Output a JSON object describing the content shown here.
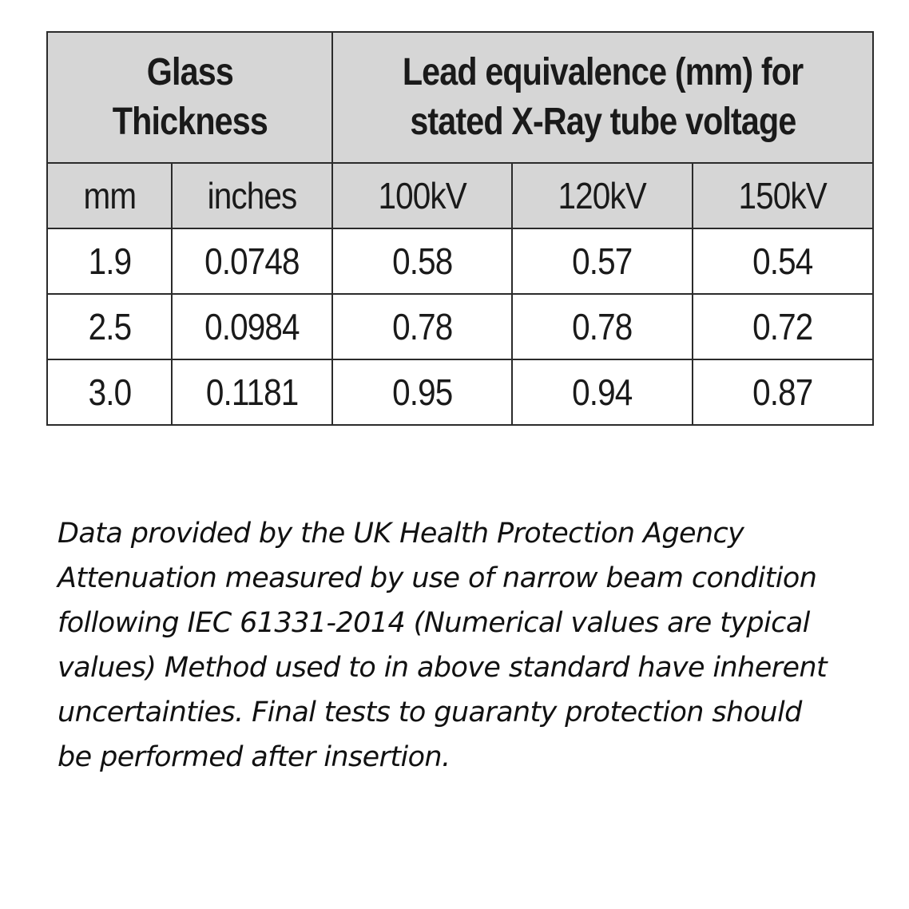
{
  "table": {
    "group_headers": {
      "glass_line1": "Glass",
      "glass_line2": "Thickness",
      "lead_line1": "Lead equivalence (mm) for",
      "lead_line2": "stated X-Ray tube voltage"
    },
    "columns": [
      "mm",
      "inches",
      "100kV",
      "120kV",
      "150kV"
    ],
    "rows": [
      [
        "1.9",
        "0.0748",
        "0.58",
        "0.57",
        "0.54"
      ],
      [
        "2.5",
        "0.0984",
        "0.78",
        "0.78",
        "0.72"
      ],
      [
        "3.0",
        "0.1181",
        "0.95",
        "0.94",
        "0.87"
      ]
    ]
  },
  "note": {
    "lines": [
      "Data provided by the UK Health Protection Agency",
      "Attenuation measured by use of narrow beam condition",
      "following IEC 61331-2014 (Numerical values are typical",
      "values) Method used to in above standard have inherent",
      "uncertainties. Final tests to guaranty protection should",
      "be performed after insertion."
    ]
  }
}
